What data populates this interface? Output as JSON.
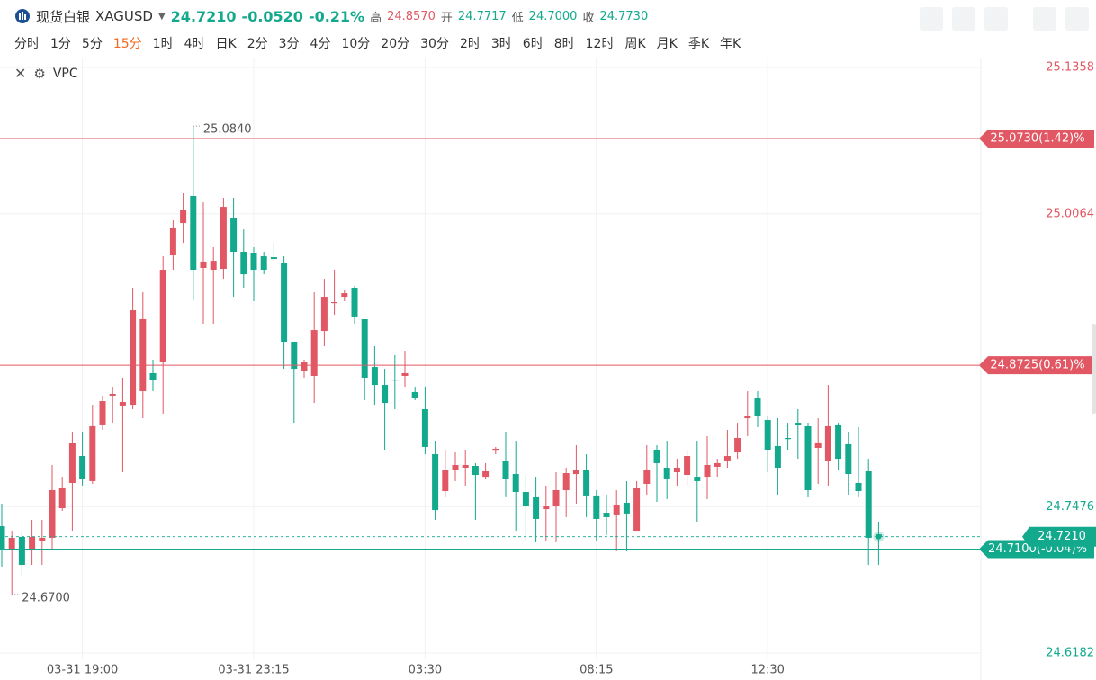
{
  "header": {
    "name": "现货白银",
    "symbol": "XAGUSD",
    "price": "24.7210",
    "change": "-0.0520",
    "change_pct": "-0.21%",
    "high_label": "高",
    "high": "24.8570",
    "open_label": "开",
    "open": "24.7717",
    "low_label": "低",
    "low": "24.7000",
    "close_label": "收",
    "close": "24.7730",
    "timeframes": [
      "分时",
      "1分",
      "5分",
      "15分",
      "1时",
      "4时",
      "日K",
      "2分",
      "3分",
      "4分",
      "10分",
      "20分",
      "30分",
      "2时",
      "3时",
      "6时",
      "8时",
      "12时",
      "周K",
      "月K",
      "季K",
      "年K"
    ],
    "active_timeframe": "15分",
    "indicator": "VPC"
  },
  "chart_data": {
    "type": "candlestick",
    "color_up": "#e15763",
    "color_down": "#13a98d",
    "categories": [
      null,
      null,
      null,
      null,
      null,
      null,
      null,
      null,
      "03-31 19:00",
      null,
      null,
      null,
      null,
      null,
      null,
      null,
      null,
      null,
      null,
      null,
      null,
      null,
      null,
      null,
      null,
      "03-31 23:15",
      null,
      null,
      null,
      null,
      null,
      null,
      null,
      null,
      null,
      null,
      null,
      null,
      null,
      null,
      null,
      null,
      "03:30",
      null,
      null,
      null,
      null,
      null,
      null,
      null,
      null,
      null,
      null,
      null,
      null,
      null,
      null,
      null,
      null,
      "08:15",
      null,
      null,
      null,
      null,
      null,
      null,
      null,
      null,
      null,
      null,
      null,
      null,
      null,
      null,
      null,
      null,
      "12:30",
      null,
      null,
      null,
      null,
      null,
      null,
      null,
      null,
      null,
      null,
      null
    ],
    "open": [
      24.7303,
      24.7089,
      24.7208,
      24.7089,
      24.7168,
      24.72,
      24.7462,
      24.7685,
      24.7923,
      24.7701,
      24.8202,
      24.8456,
      24.8369,
      24.8376,
      24.8496,
      24.8655,
      24.875,
      24.9696,
      24.9982,
      25.0221,
      24.9585,
      24.9569,
      24.9577,
      25.003,
      24.9728,
      24.972,
      24.9688,
      24.968,
      24.9633,
      24.8933,
      24.8671,
      24.8631,
      24.9028,
      24.9275,
      24.933,
      24.941,
      24.9132,
      24.871,
      24.8551,
      24.8599,
      24.8631,
      24.8488,
      24.8337,
      24.7939,
      24.7613,
      24.7796,
      24.782,
      24.7836,
      24.774,
      24.7979,
      24.7876,
      24.7764,
      24.7605,
      24.7566,
      24.7454,
      24.7478,
      24.7621,
      24.7764,
      24.7796,
      24.7574,
      24.7422,
      24.7399,
      24.751,
      24.7263,
      24.7677,
      24.7979,
      24.782,
      24.778,
      24.7756,
      24.774,
      24.774,
      24.7828,
      24.7884,
      24.7955,
      24.8257,
      24.8432,
      24.8241,
      24.8011,
      24.8082,
      24.8217,
      24.8186,
      24.7995,
      24.7876,
      24.8202,
      24.8027,
      24.7685,
      24.7788,
      24.723
    ],
    "high": [
      24.7502,
      24.7263,
      24.7263,
      24.7359,
      24.7359,
      24.7844,
      24.774,
      24.8138,
      24.8138,
      24.8376,
      24.8456,
      24.8535,
      24.8615,
      24.941,
      24.937,
      24.8774,
      24.9688,
      25.0006,
      25.0245,
      25.084,
      25.0165,
      24.9768,
      25.0205,
      25.0205,
      24.9927,
      24.9768,
      24.9728,
      24.9807,
      24.9688,
      24.8933,
      24.8774,
      24.937,
      24.9489,
      24.9569,
      24.9394,
      24.9426,
      24.9132,
      24.8893,
      24.8694,
      24.8814,
      24.8853,
      24.8535,
      24.8535,
      24.8058,
      24.7979,
      24.7955,
      24.7979,
      24.786,
      24.786,
      24.8003,
      24.8138,
      24.8058,
      24.7756,
      24.774,
      24.7661,
      24.778,
      24.782,
      24.8019,
      24.7939,
      24.7621,
      24.7581,
      24.7621,
      24.7701,
      24.7701,
      24.8019,
      24.8019,
      24.8058,
      24.7899,
      24.7979,
      24.8058,
      24.8098,
      24.7899,
      24.8154,
      24.8217,
      24.8496,
      24.8496,
      24.8281,
      24.8257,
      24.8217,
      24.8337,
      24.8217,
      24.8257,
      24.8551,
      24.8217,
      24.8138,
      24.8178,
      24.7899,
      24.7343
    ],
    "low": [
      24.6945,
      24.67,
      24.6866,
      24.6961,
      24.6961,
      24.7089,
      24.7438,
      24.7263,
      24.7661,
      24.7677,
      24.8154,
      24.8217,
      24.778,
      24.8337,
      24.8257,
      24.8496,
      24.8297,
      24.9569,
      24.9807,
      24.9307,
      24.9092,
      24.9092,
      24.9489,
      24.933,
      24.941,
      24.9291,
      24.9529,
      24.9648,
      24.8694,
      24.8217,
      24.8615,
      24.8392,
      24.8893,
      24.9171,
      24.9291,
      24.9092,
      24.8416,
      24.8376,
      24.7979,
      24.8337,
      24.8535,
      24.8416,
      24.7939,
      24.7359,
      24.7558,
      24.7701,
      24.7661,
      24.7359,
      24.7717,
      24.7939,
      24.7566,
      24.7263,
      24.7168,
      24.716,
      24.7168,
      24.716,
      24.7383,
      24.7502,
      24.7383,
      24.7168,
      24.7224,
      24.7081,
      24.7081,
      24.7263,
      24.7581,
      24.7518,
      24.7542,
      24.7661,
      24.7661,
      24.7343,
      24.7542,
      24.774,
      24.782,
      24.7899,
      24.8098,
      24.8178,
      24.778,
      24.7581,
      24.7979,
      24.7899,
      24.7558,
      24.7677,
      24.7661,
      24.7804,
      24.7581,
      24.7566,
      24.6961,
      24.6961
    ],
    "close": [
      24.7104,
      24.72,
      24.6961,
      24.7208,
      24.72,
      24.7621,
      24.7645,
      24.8035,
      24.7717,
      24.8186,
      24.8408,
      24.8472,
      24.84,
      24.9211,
      24.9132,
      24.8599,
      24.9569,
      24.9935,
      25.0094,
      24.9569,
      24.9641,
      24.9648,
      25.0125,
      24.9728,
      24.9529,
      24.9569,
      24.9569,
      24.9664,
      24.8933,
      24.8694,
      24.875,
      24.9036,
      24.933,
      24.9283,
      24.9362,
      24.9156,
      24.8615,
      24.8551,
      24.8392,
      24.8591,
      24.8655,
      24.844,
      24.8003,
      24.7446,
      24.7804,
      24.7844,
      24.7844,
      24.7756,
      24.7788,
      24.7987,
      24.7717,
      24.7605,
      24.7486,
      24.7367,
      24.7478,
      24.7621,
      24.7772,
      24.7796,
      24.7574,
      24.7367,
      24.7383,
      24.7494,
      24.7415,
      24.7637,
      24.7796,
      24.786,
      24.7725,
      24.782,
      24.7923,
      24.7701,
      24.7844,
      24.786,
      24.7923,
      24.8082,
      24.8281,
      24.8281,
      24.7979,
      24.782,
      24.8074,
      24.8194,
      24.7621,
      24.8043,
      24.8186,
      24.7899,
      24.7764,
      24.7613,
      24.72,
      24.721
    ],
    "ylim": [
      24.6182,
      25.1358
    ],
    "yticks": [
      24.6182,
      24.7476,
      25.0064,
      25.1358
    ],
    "grid": true,
    "price_lines": [
      {
        "value": 25.073,
        "label": "25.0730(1.42)%",
        "color": "#e15763"
      },
      {
        "value": 24.8725,
        "label": "24.8725(0.61)%",
        "color": "#e15763"
      },
      {
        "value": 24.71,
        "label": "24.7100(-0.04)%",
        "color": "#13a98d"
      }
    ],
    "current_price": {
      "value": 24.721,
      "label": "24.7210"
    },
    "high_mark": {
      "value": 25.084,
      "label": "25.0840"
    },
    "low_mark": {
      "value": 24.67,
      "label": "24.6700"
    }
  }
}
